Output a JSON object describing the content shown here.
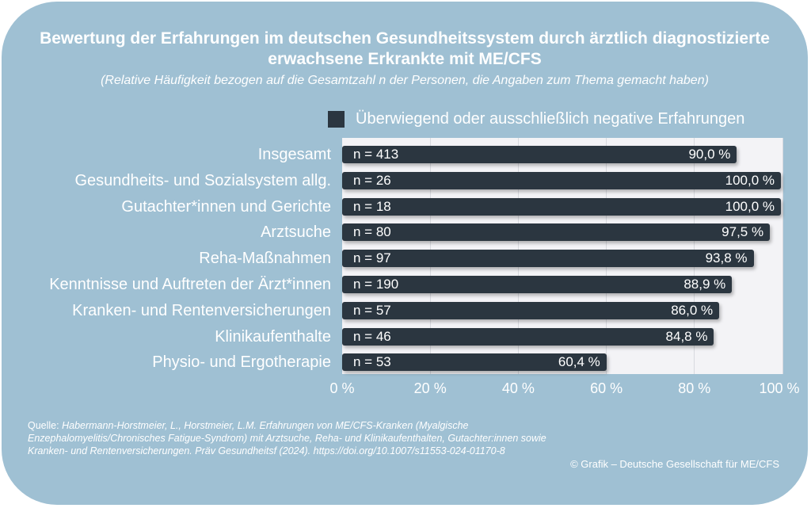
{
  "colors": {
    "background": "#9fc0d3",
    "bar": "#2b3640",
    "plot_area": "#f3f3f6",
    "text": "#ffffff"
  },
  "chart_data": {
    "type": "bar",
    "orientation": "horizontal",
    "title": "Bewertung der Erfahrungen im deutschen Gesundheitssystem durch ärztlich diagnostizierte erwachsene Erkrankte mit ME/CFS",
    "subtitle": "(Relative Häufigkeit bezogen auf die Gesamtzahl n der Personen, die Angaben zum Thema gemacht haben)",
    "legend": {
      "placement": "top-right",
      "entries": [
        "Überwiegend oder ausschließlich negative Erfahrungen"
      ]
    },
    "categories": [
      "Insgesamt",
      "Gesundheits- und Sozialsystem allg.",
      "Gutachter*innen und Gerichte",
      "Arztsuche",
      "Reha-Maßnahmen",
      "Kenntnisse und Auftreten der Ärzt*innen",
      "Kranken- und Rentenversicherungen",
      "Klinikaufenthalte",
      "Physio- und Ergotherapie"
    ],
    "series": [
      {
        "name": "Überwiegend oder ausschließlich negative Erfahrungen",
        "values": [
          90.0,
          100.0,
          100.0,
          97.5,
          93.8,
          88.9,
          86.0,
          84.8,
          60.4
        ]
      }
    ],
    "n_labels": [
      "n = 413",
      "n = 26",
      "n = 18",
      "n = 80",
      "n = 97",
      "n = 190",
      "n = 57",
      "n = 46",
      "n = 53"
    ],
    "value_labels": [
      "90,0 %",
      "100,0 %",
      "100,0 %",
      "97,5 %",
      "93,8 %",
      "88,9 %",
      "86,0 %",
      "84,8 %",
      "60,4 %"
    ],
    "x_ticks": [
      0,
      20,
      40,
      60,
      80,
      100
    ],
    "x_tick_labels": [
      "0 %",
      "20 %",
      "40 %",
      "60 %",
      "80 %",
      "100 %"
    ],
    "xlim": [
      0,
      100
    ],
    "grid": true
  },
  "source": {
    "label": "Quelle:",
    "text": "Habermann-Horstmeier, L., Horstmeier, L.M. Erfahrungen von ME/CFS-Kranken (Myalgische Enzephalomyelitis/Chronisches Fatigue-Syndrom) mit Arztsuche, Reha- und Klinikaufenthalten, Gutachter:innen sowie Kranken- und Rentenversicherungen. Präv Gesundheitsf (2024). https://doi.org/10.1007/s11553-024-01170-8"
  },
  "credit": "© Grafik – Deutsche Gesellschaft für ME/CFS"
}
